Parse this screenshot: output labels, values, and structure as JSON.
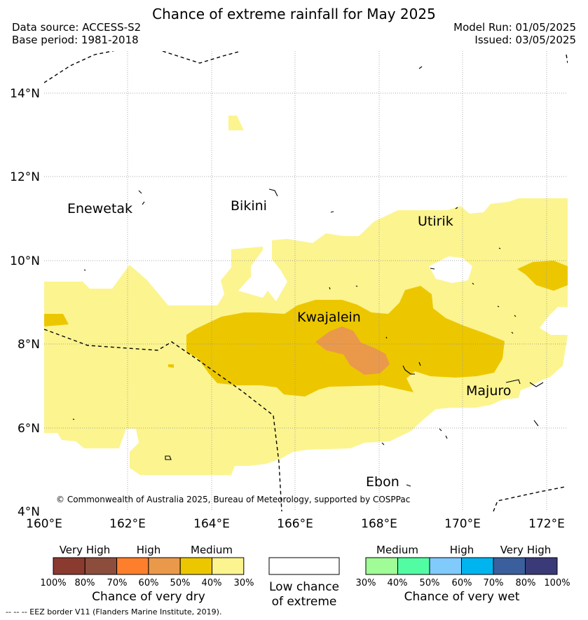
{
  "header": {
    "title": "Chance of extreme rainfall for May 2025",
    "data_source": "Data source: ACCESS-S2",
    "base_period": "Base period: 1981-2018",
    "model_run": "Model Run: 01/05/2025",
    "issued": "Issued: 03/05/2025"
  },
  "map": {
    "lat_ticks": [
      "14°N",
      "12°N",
      "10°N",
      "8°N",
      "6°N",
      "4°N"
    ],
    "lon_ticks": [
      "160°E",
      "162°E",
      "164°E",
      "166°E",
      "168°E",
      "170°E",
      "172°E"
    ],
    "place_labels": {
      "enewetak": "Enewetak",
      "bikini": "Bikini",
      "utirik": "Utirik",
      "kwajalein": "Kwajalein",
      "majuro": "Majuro",
      "ebon": "Ebon"
    },
    "copyright": "© Commonwealth of Australia 2025, Bureau of Meteorology, supported by COSPPac",
    "colors": {
      "dry_medium_light": "#fcf48f",
      "dry_medium": "#ecc700",
      "dry_high": "#ea994b",
      "border": "#000000",
      "grid": "#8c8c8c"
    }
  },
  "legend": {
    "dry": {
      "categories": [
        "Very High",
        "High",
        "Medium"
      ],
      "colors": [
        "#8b3a2f",
        "#8c4d3c",
        "#fd7f2c",
        "#ea994b",
        "#ecc700",
        "#fcf48f"
      ],
      "ticks": [
        "100%",
        "80%",
        "70%",
        "60%",
        "50%",
        "40%",
        "30%"
      ],
      "title": "Chance of very dry"
    },
    "low": {
      "line1": "Low chance",
      "line2": "of extreme"
    },
    "wet": {
      "categories": [
        "Medium",
        "High",
        "Very High"
      ],
      "colors": [
        "#9ffc96",
        "#52fca3",
        "#80cafc",
        "#00b4f0",
        "#3a5f9c",
        "#3a3a78"
      ],
      "ticks": [
        "30%",
        "40%",
        "50%",
        "60%",
        "70%",
        "80%",
        "100%"
      ],
      "title": "Chance of very wet"
    },
    "eez_note": "--  --  -- EEZ border V11 (Flanders Marine Institute, 2019)."
  }
}
